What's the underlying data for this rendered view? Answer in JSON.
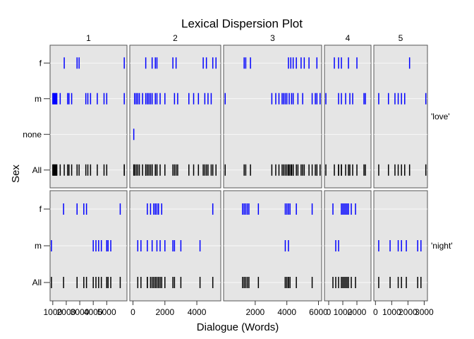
{
  "chart_data": {
    "type": "lexical-dispersion",
    "title": "Lexical Dispersion Plot",
    "xlabel": "Dialogue (Words)",
    "ylabel": "Sex",
    "grid": true,
    "colors": {
      "panel_bg": "#e5e5e5",
      "speaker_mark": "#0000ff",
      "all_mark": "#000000",
      "strip_bg": "#ffffff"
    },
    "columns": [
      {
        "label": "1",
        "xlim": [
          800,
          6500
        ],
        "ticks": [
          1000,
          2000,
          3000,
          4000,
          5000
        ],
        "tick_labels": [
          "1000",
          "2000",
          "3000",
          "4000",
          "5000"
        ]
      },
      {
        "label": "2",
        "xlim": [
          -200,
          5500
        ],
        "ticks": [
          0,
          2000,
          4000
        ],
        "tick_labels": [
          "0",
          "2000",
          "4000"
        ]
      },
      {
        "label": "3",
        "xlim": [
          0,
          6200
        ],
        "ticks": [
          2000,
          4000,
          6000
        ],
        "tick_labels": [
          "2000",
          "4000",
          "6000"
        ]
      },
      {
        "label": "4",
        "xlim": [
          -300,
          3000
        ],
        "ticks": [
          0,
          1000,
          2000
        ],
        "tick_labels": [
          "0",
          "1000",
          "2000"
        ]
      },
      {
        "label": "5",
        "xlim": [
          -100,
          3200
        ],
        "ticks": [
          0,
          1000,
          2000,
          3000
        ],
        "tick_labels": [
          "0",
          "1000",
          "2000",
          "3000"
        ]
      }
    ],
    "rows": [
      {
        "label": "'love'",
        "categories": [
          "f",
          "m",
          "none",
          "All"
        ],
        "marks": [
          {
            "f": [
              1850,
              2800,
              2950,
              6300
            ],
            "m": [
              1000,
              1050,
              1100,
              1150,
              1200,
              1250,
              1300,
              1550,
              2100,
              2200,
              2400,
              3450,
              3600,
              3800,
              4300,
              4800,
              5000,
              6300
            ],
            "none": []
          },
          {
            "f": [
              800,
              1200,
              1400,
              1500,
              2500,
              2700,
              4400,
              4600,
              5000,
              5200
            ],
            "m": [
              100,
              200,
              300,
              400,
              600,
              800,
              900,
              1000,
              1100,
              1200,
              1400,
              1500,
              1700,
              2000,
              2600,
              2800,
              3500,
              3800,
              4100,
              4500,
              4700,
              4900
            ],
            "none": [
              50
            ]
          },
          {
            "f": [
              1300,
              1400,
              1700,
              4100,
              4250,
              4400,
              4600,
              4900,
              5100,
              5400,
              5900
            ],
            "m": [
              100,
              3050,
              3300,
              3500,
              3700,
              3800,
              3900,
              4000,
              4150,
              4300,
              4400,
              4700,
              5000,
              5600,
              5800,
              5900,
              6100
            ],
            "none": []
          },
          {
            "f": [
              400,
              700,
              900,
              1400,
              2000
            ],
            "m": [
              -200,
              700,
              900,
              1200,
              1500,
              1700,
              2500,
              2600
            ],
            "none": []
          },
          {
            "f": [
              2100
            ],
            "m": [
              200,
              800,
              1200,
              1400,
              1600,
              1800,
              3100
            ],
            "none": []
          }
        ]
      },
      {
        "label": "'night'",
        "categories": [
          "f",
          "m",
          "All"
        ],
        "marks": [
          {
            "f": [
              1800,
              2800,
              3300,
              3500,
              6000
            ],
            "m": [
              900,
              4000,
              4200,
              4400,
              4600,
              5000,
              5100,
              5300
            ]
          },
          {
            "f": [
              900,
              1100,
              1300,
              1400,
              1500,
              1600,
              1800,
              5000
            ],
            "m": [
              300,
              500,
              900,
              1200,
              1500,
              1700,
              2000,
              2500,
              2600,
              3000,
              4200
            ]
          },
          {
            "f": [
              1200,
              1300,
              1400,
              1500,
              1600,
              2200,
              3900,
              4000,
              4100,
              4200,
              4600,
              5600
            ],
            "m": [
              3900,
              4100
            ]
          },
          {
            "f": [
              300,
              900,
              1000,
              1100,
              1200,
              1300,
              1400,
              1600,
              1900
            ],
            "m": [
              500,
              700
            ]
          },
          {
            "f": [],
            "m": [
              200,
              900,
              1400,
              1600,
              1900,
              2600,
              2800
            ]
          }
        ]
      }
    ]
  }
}
